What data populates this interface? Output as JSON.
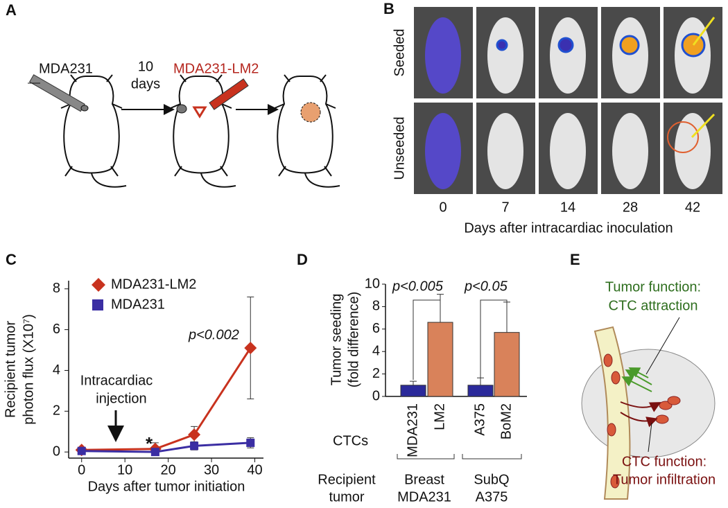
{
  "panel_labels": [
    "A",
    "B",
    "C",
    "D",
    "E"
  ],
  "panel_a": {
    "cells": "MDA231",
    "days": [
      "10",
      "days"
    ],
    "derived": "MDA231-LM2"
  },
  "panel_b": {
    "rows": [
      "Seeded",
      "Unseeded"
    ],
    "columns": [
      "0",
      "7",
      "14",
      "28",
      "42"
    ],
    "xlabel": "Days after intracardiac inoculation"
  },
  "chart_data": [
    {
      "type": "line",
      "xlabel": "Days after tumor initiation",
      "ylabel": [
        "Recipient tumor",
        "photon flux (X10⁷)"
      ],
      "xlim": [
        -3,
        42
      ],
      "ylim": [
        -0.3,
        8.4
      ],
      "xticks": [
        0,
        10,
        20,
        30,
        40
      ],
      "yticks": [
        0,
        2,
        4,
        6,
        8
      ],
      "series": [
        {
          "name": "MDA231-LM2",
          "color": "#c8321e",
          "marker": "diamond",
          "x": [
            0,
            17,
            26,
            39
          ],
          "values": [
            0.1,
            0.15,
            0.85,
            5.1
          ],
          "errors": [
            0,
            0.3,
            0.4,
            2.5
          ]
        },
        {
          "name": "MDA231",
          "color": "#3b2ea3",
          "marker": "square",
          "x": [
            0,
            17,
            26,
            39
          ],
          "values": [
            0.05,
            0,
            0.3,
            0.45
          ],
          "errors": [
            0,
            0.15,
            0.2,
            0.25
          ]
        }
      ],
      "annotations": {
        "pvalue": "p<0.002",
        "injection": [
          "Intracardiac",
          "injection"
        ],
        "asterisk": "*"
      }
    },
    {
      "type": "bar",
      "ylabel": [
        "Tumor seeding",
        "(fold difference)"
      ],
      "ylim": [
        0,
        10
      ],
      "yticks": [
        0,
        2,
        4,
        6,
        8,
        10
      ],
      "categories": [
        "MDA231",
        "LM2",
        "A375",
        "BoM2"
      ],
      "values": [
        1.0,
        6.6,
        1.0,
        5.7
      ],
      "errors": [
        0.35,
        2.5,
        0.65,
        2.7
      ],
      "colors": [
        "#2b2a9b",
        "#d9825a",
        "#2b2a9b",
        "#d9825a"
      ],
      "comparisons": [
        "p<0.005",
        "p<0.05"
      ],
      "row_label": "CTCs",
      "group_label": [
        "Recipient",
        "tumor"
      ],
      "groups": [
        [
          "Breast",
          "MDA231"
        ],
        [
          "SubQ",
          "A375"
        ]
      ]
    }
  ],
  "panel_e": {
    "tumor_function": [
      "Tumor function:",
      "CTC attraction"
    ],
    "ctc_function": [
      "CTC function:",
      "Tumor infiltration"
    ]
  }
}
